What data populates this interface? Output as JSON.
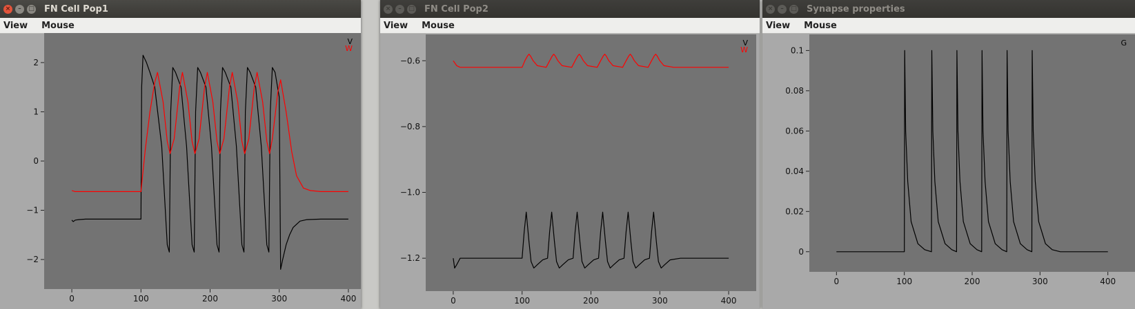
{
  "windows": [
    {
      "id": "pop1",
      "title": "FN Cell Pop1",
      "menu": [
        "View",
        "Mouse"
      ],
      "legend": [
        {
          "label": "V",
          "color": "#000000"
        },
        {
          "label": "W",
          "color": "#ff0000"
        }
      ]
    },
    {
      "id": "pop2",
      "title": "FN Cell Pop2",
      "menu": [
        "View",
        "Mouse"
      ],
      "legend": [
        {
          "label": "V",
          "color": "#000000"
        },
        {
          "label": "W",
          "color": "#ff0000"
        }
      ]
    },
    {
      "id": "syn",
      "title": "Synapse properties",
      "menu": [
        "View",
        "Mouse"
      ],
      "legend": [
        {
          "label": "G",
          "color": "#000000"
        }
      ]
    }
  ],
  "chart_data": [
    {
      "type": "line",
      "window": "pop1",
      "xlim": [
        -40,
        440
      ],
      "ylim": [
        -2.6,
        2.6
      ],
      "xticks": [
        0,
        100,
        200,
        300,
        400
      ],
      "yticks": [
        -2,
        -1,
        0,
        1,
        2
      ],
      "series": [
        {
          "name": "V",
          "color": "#000000",
          "x": [
            0,
            2,
            5,
            10,
            20,
            50,
            80,
            100,
            101,
            103,
            108,
            113,
            120,
            130,
            138,
            141,
            143,
            146,
            150,
            158,
            166,
            174,
            177,
            179,
            182,
            186,
            194,
            202,
            210,
            213,
            215,
            218,
            222,
            230,
            238,
            246,
            249,
            251,
            254,
            258,
            266,
            274,
            282,
            285,
            287,
            290,
            294,
            300,
            302,
            305,
            310,
            315,
            320,
            330,
            340,
            360,
            400
          ],
          "values": [
            -1.2,
            -1.23,
            -1.2,
            -1.19,
            -1.18,
            -1.18,
            -1.18,
            -1.18,
            1.5,
            2.15,
            2.0,
            1.8,
            1.5,
            0.3,
            -1.7,
            -1.85,
            1.0,
            1.9,
            1.8,
            1.5,
            0.3,
            -1.7,
            -1.85,
            1.0,
            1.9,
            1.8,
            1.5,
            0.3,
            -1.7,
            -1.85,
            1.0,
            1.9,
            1.8,
            1.5,
            0.3,
            -1.7,
            -1.85,
            1.0,
            1.9,
            1.8,
            1.5,
            0.3,
            -1.7,
            -1.85,
            1.0,
            1.9,
            1.8,
            1.3,
            -2.2,
            -2.0,
            -1.7,
            -1.5,
            -1.35,
            -1.22,
            -1.19,
            -1.18,
            -1.18
          ]
        },
        {
          "name": "W",
          "color": "#ff0000",
          "x": [
            0,
            5,
            10,
            50,
            100,
            106,
            113,
            120,
            124,
            132,
            138,
            142,
            148,
            156,
            160,
            168,
            174,
            178,
            184,
            192,
            196,
            204,
            210,
            214,
            220,
            228,
            232,
            240,
            246,
            250,
            256,
            264,
            268,
            276,
            282,
            286,
            290,
            298,
            302,
            310,
            318,
            325,
            335,
            345,
            360,
            400
          ],
          "values": [
            -0.6,
            -0.62,
            -0.62,
            -0.62,
            -0.62,
            0.2,
            1.0,
            1.6,
            1.8,
            1.2,
            0.4,
            0.15,
            0.45,
            1.5,
            1.8,
            1.2,
            0.4,
            0.15,
            0.45,
            1.5,
            1.8,
            1.2,
            0.4,
            0.15,
            0.45,
            1.5,
            1.8,
            1.2,
            0.4,
            0.15,
            0.45,
            1.5,
            1.8,
            1.2,
            0.4,
            0.15,
            0.45,
            1.4,
            1.65,
            1.0,
            0.2,
            -0.3,
            -0.55,
            -0.6,
            -0.62,
            -0.62
          ]
        }
      ]
    },
    {
      "type": "line",
      "window": "pop2",
      "xlim": [
        -40,
        440
      ],
      "ylim": [
        -1.3,
        -0.52
      ],
      "xticks": [
        0,
        100,
        200,
        300,
        400
      ],
      "yticks": [
        -1.2,
        -1.0,
        -0.8,
        -0.6
      ],
      "series": [
        {
          "name": "W",
          "color": "#ff0000",
          "x": [
            0,
            5,
            10,
            50,
            100,
            104,
            108,
            110,
            112,
            116,
            122,
            135,
            140,
            144,
            146,
            148,
            152,
            158,
            172,
            177,
            181,
            183,
            185,
            189,
            195,
            209,
            214,
            218,
            220,
            222,
            226,
            232,
            246,
            251,
            255,
            257,
            259,
            263,
            269,
            283,
            288,
            292,
            294,
            296,
            300,
            306,
            320,
            400
          ],
          "values": [
            -0.6,
            -0.615,
            -0.62,
            -0.62,
            -0.62,
            -0.6,
            -0.585,
            -0.58,
            -0.585,
            -0.6,
            -0.615,
            -0.62,
            -0.6,
            -0.585,
            -0.58,
            -0.585,
            -0.6,
            -0.615,
            -0.62,
            -0.6,
            -0.585,
            -0.58,
            -0.585,
            -0.6,
            -0.615,
            -0.62,
            -0.6,
            -0.585,
            -0.58,
            -0.585,
            -0.6,
            -0.615,
            -0.62,
            -0.6,
            -0.585,
            -0.58,
            -0.585,
            -0.6,
            -0.615,
            -0.62,
            -0.6,
            -0.585,
            -0.58,
            -0.585,
            -0.6,
            -0.615,
            -0.62,
            -0.62
          ]
        },
        {
          "name": "V",
          "color": "#000000",
          "x": [
            0,
            2,
            5,
            10,
            20,
            50,
            100,
            103,
            106,
            110,
            113,
            117,
            122,
            130,
            137,
            140,
            143,
            147,
            150,
            154,
            159,
            167,
            174,
            177,
            180,
            184,
            187,
            191,
            196,
            204,
            211,
            214,
            217,
            221,
            224,
            228,
            233,
            241,
            248,
            251,
            254,
            258,
            261,
            265,
            270,
            278,
            285,
            288,
            291,
            295,
            298,
            302,
            307,
            315,
            330,
            400
          ],
          "values": [
            -1.2,
            -1.23,
            -1.22,
            -1.2,
            -1.2,
            -1.2,
            -1.2,
            -1.12,
            -1.06,
            -1.15,
            -1.21,
            -1.23,
            -1.22,
            -1.205,
            -1.2,
            -1.12,
            -1.06,
            -1.15,
            -1.21,
            -1.23,
            -1.22,
            -1.205,
            -1.2,
            -1.12,
            -1.06,
            -1.15,
            -1.21,
            -1.23,
            -1.22,
            -1.205,
            -1.2,
            -1.12,
            -1.06,
            -1.15,
            -1.21,
            -1.23,
            -1.22,
            -1.205,
            -1.2,
            -1.12,
            -1.06,
            -1.15,
            -1.21,
            -1.23,
            -1.22,
            -1.205,
            -1.2,
            -1.12,
            -1.06,
            -1.15,
            -1.21,
            -1.23,
            -1.22,
            -1.205,
            -1.2,
            -1.2
          ]
        }
      ]
    },
    {
      "type": "line",
      "window": "syn",
      "xlim": [
        -40,
        440
      ],
      "ylim": [
        -0.01,
        0.108
      ],
      "xticks": [
        0,
        100,
        200,
        300,
        400
      ],
      "yticks": [
        0,
        0.02,
        0.04,
        0.06,
        0.08,
        0.1
      ],
      "series": [
        {
          "name": "G",
          "color": "#000000",
          "x": [
            0,
            100,
            100.5,
            102,
            105,
            110,
            120,
            130,
            140,
            140.5,
            142,
            145,
            150,
            160,
            170,
            177,
            177.5,
            179,
            182,
            187,
            197,
            207,
            214,
            214.5,
            216,
            219,
            224,
            234,
            244,
            251,
            251.5,
            253,
            256,
            261,
            271,
            281,
            288,
            288.5,
            290,
            293,
            298,
            308,
            318,
            330,
            400
          ],
          "values": [
            0,
            0,
            0.1,
            0.06,
            0.035,
            0.015,
            0.004,
            0.001,
            0,
            0.1,
            0.06,
            0.035,
            0.015,
            0.004,
            0.001,
            0,
            0.1,
            0.06,
            0.035,
            0.015,
            0.004,
            0.001,
            0,
            0.1,
            0.06,
            0.035,
            0.015,
            0.004,
            0.001,
            0,
            0.1,
            0.06,
            0.035,
            0.015,
            0.004,
            0.001,
            0,
            0.1,
            0.06,
            0.035,
            0.015,
            0.004,
            0.001,
            0,
            0
          ]
        }
      ]
    }
  ]
}
